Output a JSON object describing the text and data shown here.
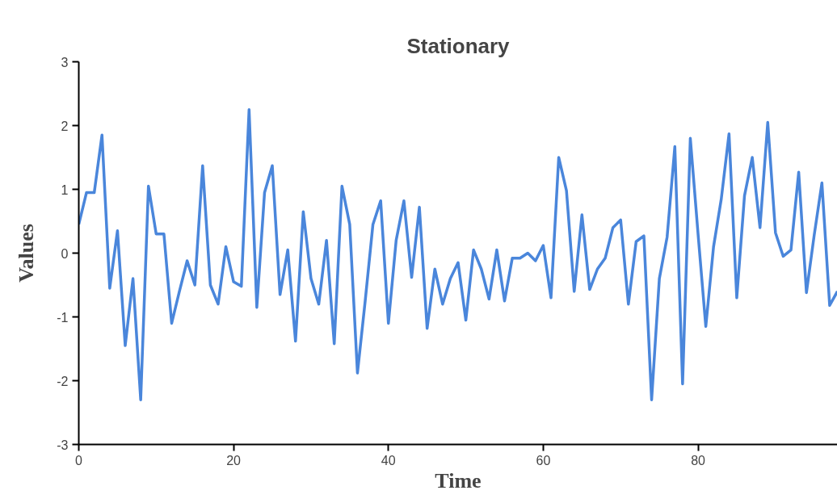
{
  "chart_data": {
    "type": "line",
    "title": "Stationary",
    "xlabel": "Time",
    "ylabel": "Values",
    "xlim": [
      0,
      98
    ],
    "ylim": [
      -3,
      3
    ],
    "xticks": [
      0,
      20,
      40,
      60,
      80
    ],
    "yticks": [
      -3,
      -2,
      -1,
      0,
      1,
      2,
      3
    ],
    "grid": false,
    "marker": "none",
    "line_style": "solid",
    "series": [
      {
        "color": "#4a86db",
        "x": [
          0,
          1,
          2,
          3,
          4,
          5,
          6,
          7,
          8,
          9,
          10,
          11,
          12,
          13,
          14,
          15,
          16,
          17,
          18,
          19,
          20,
          21,
          22,
          23,
          24,
          25,
          26,
          27,
          28,
          29,
          30,
          31,
          32,
          33,
          34,
          35,
          36,
          37,
          38,
          39,
          40,
          41,
          42,
          43,
          44,
          45,
          46,
          47,
          48,
          49,
          50,
          51,
          52,
          53,
          54,
          55,
          56,
          57,
          58,
          59,
          60,
          61,
          62,
          63,
          64,
          65,
          66,
          67,
          68,
          69,
          70,
          71,
          72,
          73,
          74,
          75,
          76,
          77,
          78,
          79,
          80,
          81,
          82,
          83,
          84,
          85,
          86,
          87,
          88,
          89,
          90,
          91,
          92,
          93,
          94,
          95,
          96,
          97,
          98
        ],
        "values": [
          0.45,
          0.95,
          0.95,
          1.85,
          -0.55,
          0.35,
          -1.45,
          -0.4,
          -2.3,
          1.05,
          0.3,
          0.3,
          -1.1,
          -0.6,
          -0.12,
          -0.5,
          1.37,
          -0.5,
          -0.8,
          0.1,
          -0.45,
          -0.52,
          2.25,
          -0.85,
          0.95,
          1.37,
          -0.65,
          0.05,
          -1.38,
          0.65,
          -0.4,
          -0.8,
          0.2,
          -1.42,
          1.05,
          0.45,
          -1.88,
          -0.75,
          0.45,
          0.82,
          -1.1,
          0.2,
          0.82,
          -0.38,
          0.72,
          -1.18,
          -0.25,
          -0.8,
          -0.4,
          -0.15,
          -1.05,
          0.05,
          -0.25,
          -0.72,
          0.05,
          -0.75,
          -0.08,
          -0.08,
          0.0,
          -0.12,
          0.12,
          -0.7,
          1.5,
          0.98,
          -0.6,
          0.6,
          -0.57,
          -0.25,
          -0.08,
          0.4,
          0.52,
          -0.8,
          0.18,
          0.27,
          -2.3,
          -0.4,
          0.25,
          1.67,
          -2.05,
          1.8,
          0.3,
          -1.15,
          0.1,
          0.85,
          1.87,
          -0.7,
          0.9,
          1.5,
          0.4,
          2.05,
          0.32,
          -0.05,
          0.05,
          1.27,
          -0.62,
          0.28,
          1.1,
          -0.82,
          -0.6
        ]
      }
    ]
  }
}
